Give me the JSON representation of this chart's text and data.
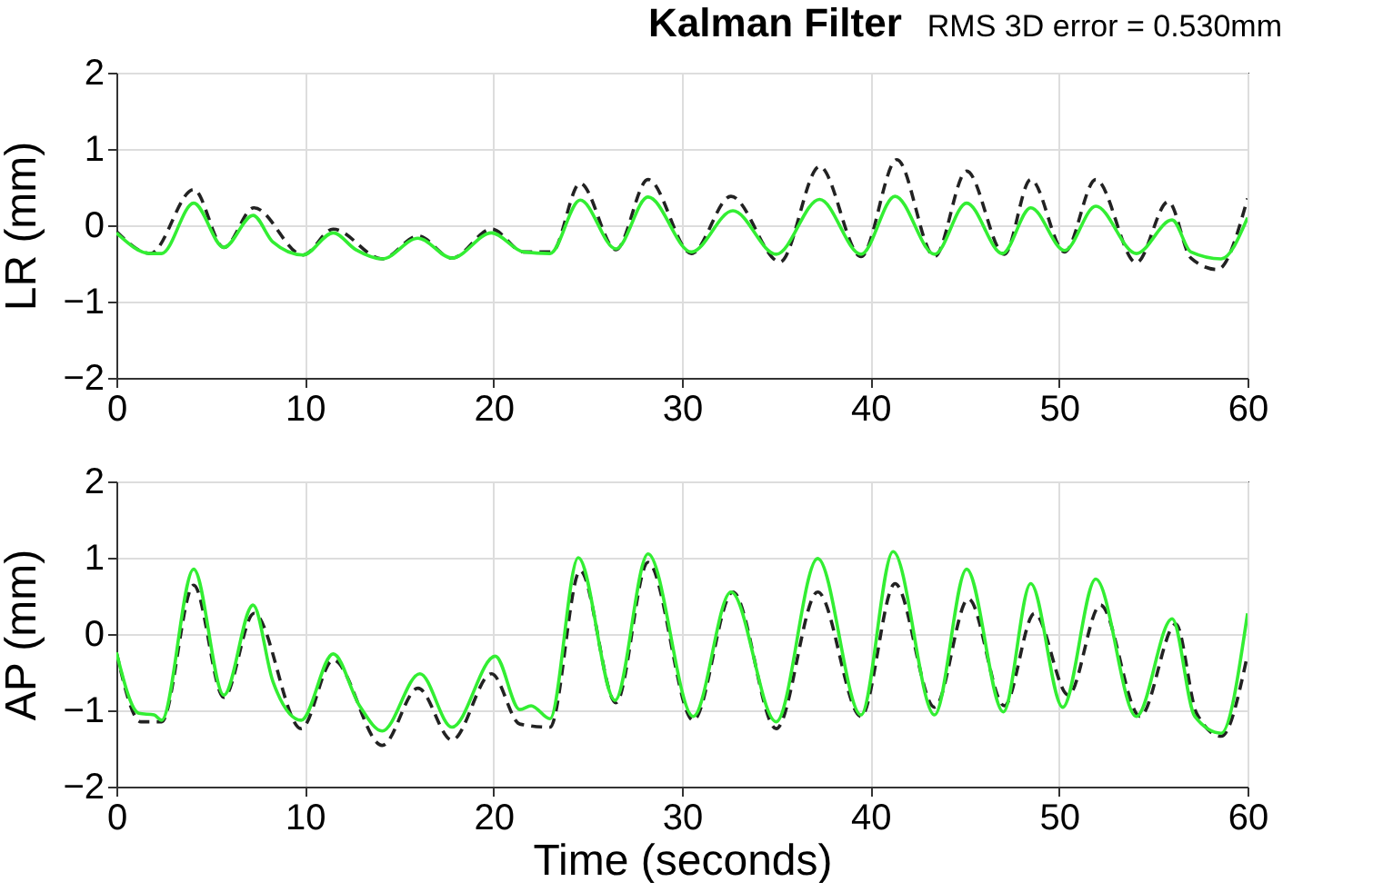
{
  "chart_data": [
    {
      "type": "line",
      "title": "Kalman Filter",
      "subtitle": "RMS 3D error = 0.530mm",
      "ylabel": "LR (mm)",
      "xlim": [
        0,
        60
      ],
      "xticks": [
        0,
        10,
        20,
        30,
        40,
        50,
        60
      ],
      "ylim": [
        -2,
        2
      ],
      "yticks": [
        -2,
        -1,
        0,
        1,
        2
      ],
      "grid": true,
      "series": [
        {
          "color": "#222222",
          "line_style": "dashed",
          "x": [
            0,
            1.8,
            4.1,
            5.7,
            7.3,
            9.9,
            11.5,
            14.1,
            16.0,
            17.8,
            19.9,
            21.6,
            23.1,
            24.6,
            26.5,
            28.2,
            30.5,
            32.6,
            35.2,
            37.3,
            39.5,
            41.4,
            43.4,
            45.1,
            47.1,
            48.5,
            50.3,
            51.95,
            54.1,
            55.8,
            57.0,
            58.4,
            60
          ],
          "values": [
            -0.08,
            -0.37,
            0.47,
            -0.29,
            0.23,
            -0.39,
            -0.05,
            -0.44,
            -0.14,
            -0.43,
            -0.05,
            -0.35,
            -0.35,
            0.55,
            -0.32,
            0.6,
            -0.37,
            0.38,
            -0.48,
            0.77,
            -0.41,
            0.86,
            -0.41,
            0.71,
            -0.38,
            0.6,
            -0.35,
            0.6,
            -0.49,
            0.31,
            -0.43,
            -0.58,
            0.35
          ]
        },
        {
          "color": "#33ee33",
          "line_style": "solid",
          "x": [
            0,
            1.8,
            2.4,
            4.1,
            5.7,
            7.25,
            8.3,
            9.9,
            11.5,
            12.7,
            14.1,
            16.0,
            17.8,
            19.9,
            21.6,
            23.0,
            24.6,
            26.5,
            28.2,
            30.5,
            32.7,
            35.0,
            37.3,
            39.5,
            41.3,
            43.4,
            45.1,
            47.0,
            48.5,
            50.3,
            51.95,
            54.1,
            56.0,
            57.0,
            58.6,
            60
          ],
          "values": [
            -0.1,
            -0.37,
            -0.37,
            0.29,
            -0.29,
            0.13,
            -0.22,
            -0.39,
            -0.1,
            -0.32,
            -0.44,
            -0.17,
            -0.43,
            -0.1,
            -0.35,
            -0.37,
            0.33,
            -0.31,
            0.37,
            -0.35,
            0.19,
            -0.38,
            0.34,
            -0.38,
            0.38,
            -0.38,
            0.29,
            -0.37,
            0.23,
            -0.33,
            0.25,
            -0.37,
            0.07,
            -0.35,
            -0.44,
            0.1
          ]
        }
      ]
    },
    {
      "type": "line",
      "xlabel": "Time (seconds)",
      "ylabel": "AP (mm)",
      "xlim": [
        0,
        60
      ],
      "xticks": [
        0,
        10,
        20,
        30,
        40,
        50,
        60
      ],
      "ylim": [
        -2,
        2
      ],
      "yticks": [
        -2,
        -1,
        0,
        1,
        2
      ],
      "grid": true,
      "series": [
        {
          "color": "#222222",
          "line_style": "dashed",
          "x": [
            0,
            1.3,
            2.4,
            4.1,
            5.7,
            7.3,
            9.8,
            11.5,
            14.1,
            16.0,
            17.8,
            19.9,
            21.4,
            23.0,
            24.6,
            26.5,
            28.2,
            30.6,
            32.7,
            35.0,
            37.2,
            39.5,
            41.3,
            43.4,
            45.2,
            47.1,
            48.7,
            50.5,
            52.2,
            54.3,
            56.2,
            57.3,
            58.6,
            60
          ],
          "values": [
            -0.24,
            -1.15,
            -1.15,
            0.64,
            -0.83,
            0.27,
            -1.24,
            -0.34,
            -1.46,
            -0.71,
            -1.39,
            -0.52,
            -1.18,
            -1.22,
            0.83,
            -0.9,
            0.94,
            -1.13,
            0.55,
            -1.24,
            0.55,
            -1.08,
            0.66,
            -0.96,
            0.46,
            -0.94,
            0.27,
            -0.8,
            0.38,
            -1.08,
            0.13,
            -1.04,
            -1.34,
            -0.27
          ]
        },
        {
          "color": "#33ee33",
          "line_style": "solid",
          "x": [
            0,
            1.2,
            2.0,
            2.4,
            4.1,
            5.7,
            7.25,
            8.3,
            9.8,
            11.5,
            12.9,
            14.1,
            16.1,
            17.8,
            20.1,
            21.4,
            22.0,
            23.0,
            24.5,
            26.45,
            28.2,
            30.6,
            32.6,
            35.0,
            37.2,
            39.5,
            41.2,
            43.4,
            45.1,
            47.05,
            48.5,
            50.2,
            51.95,
            54.1,
            56.0,
            57.2,
            58.6,
            60
          ],
          "values": [
            -0.24,
            -1.04,
            -1.06,
            -1.13,
            0.85,
            -0.8,
            0.38,
            -0.62,
            -1.13,
            -0.26,
            -0.94,
            -1.27,
            -0.52,
            -1.22,
            -0.29,
            -0.99,
            -0.94,
            -1.11,
            1.0,
            -0.87,
            1.05,
            -1.08,
            0.55,
            -1.15,
            0.99,
            -1.06,
            1.08,
            -1.06,
            0.85,
            -1.02,
            0.66,
            -0.96,
            0.72,
            -1.08,
            0.2,
            -1.08,
            -1.3,
            0.27
          ]
        }
      ]
    }
  ]
}
